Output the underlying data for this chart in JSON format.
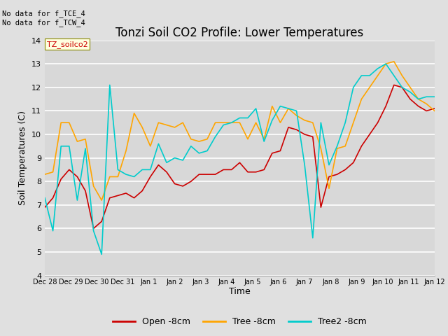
{
  "title": "Tonzi Soil CO2 Profile: Lower Temperatures",
  "xlabel": "Time",
  "ylabel": "Soil Temperatures (C)",
  "ylim": [
    4.0,
    14.0
  ],
  "yticks": [
    4.0,
    5.0,
    6.0,
    7.0,
    8.0,
    9.0,
    10.0,
    11.0,
    12.0,
    13.0,
    14.0
  ],
  "xtick_labels": [
    "Dec 28",
    "Dec 29",
    "Dec 30",
    "Dec 31",
    "Jan 1",
    "Jan 2",
    "Jan 3",
    "Jan 4",
    "Jan 5",
    "Jan 6",
    "Jan 7",
    "Jan 8",
    "Jan 9",
    "Jan 10",
    "Jan 11",
    "Jan 12"
  ],
  "annotation_text": "No data for f_TCE_4\nNo data for f_TCW_4",
  "legend_label_text": "TZ_soilco2",
  "legend_labels": [
    "Open -8cm",
    "Tree -8cm",
    "Tree2 -8cm"
  ],
  "line_colors": [
    "#cc0000",
    "#ffa500",
    "#00cccc"
  ],
  "background_color": "#e0e0e0",
  "plot_bg_color": "#d8d8d8",
  "grid_color": "#ffffff",
  "title_fontsize": 12,
  "open_8cm": [
    6.9,
    7.3,
    8.1,
    8.5,
    8.2,
    7.6,
    6.0,
    6.3,
    7.3,
    7.4,
    7.5,
    7.3,
    7.6,
    8.2,
    8.7,
    8.4,
    7.9,
    7.8,
    8.0,
    8.3,
    8.3,
    8.3,
    8.5,
    8.5,
    8.8,
    8.4,
    8.4,
    8.5,
    9.2,
    9.3,
    10.3,
    10.2,
    10.0,
    9.9,
    6.9,
    8.2,
    8.3,
    8.5,
    8.8,
    9.5,
    10.0,
    10.5,
    11.2,
    12.1,
    12.0,
    11.5,
    11.2,
    11.0,
    11.1
  ],
  "tree_8cm": [
    8.3,
    8.4,
    10.5,
    10.5,
    9.7,
    9.8,
    7.8,
    7.2,
    8.2,
    8.2,
    9.3,
    10.9,
    10.3,
    9.5,
    10.5,
    10.4,
    10.3,
    10.5,
    9.8,
    9.7,
    9.8,
    10.5,
    10.5,
    10.5,
    10.5,
    9.8,
    10.5,
    9.8,
    11.2,
    10.5,
    11.1,
    10.8,
    10.6,
    10.5,
    9.4,
    7.7,
    9.4,
    9.5,
    10.5,
    11.5,
    12.0,
    12.5,
    13.0,
    13.1,
    12.5,
    12.0,
    11.5,
    11.3,
    11.0
  ],
  "tree2_8cm": [
    7.3,
    5.9,
    9.5,
    9.5,
    7.2,
    9.4,
    5.9,
    4.9,
    12.1,
    8.5,
    8.3,
    8.2,
    8.5,
    8.5,
    9.6,
    8.8,
    9.0,
    8.9,
    9.5,
    9.2,
    9.3,
    9.9,
    10.4,
    10.5,
    10.7,
    10.7,
    11.1,
    9.7,
    10.6,
    11.2,
    11.1,
    11.0,
    8.7,
    5.6,
    10.5,
    8.7,
    9.5,
    10.5,
    12.0,
    12.5,
    12.5,
    12.8,
    13.0,
    12.5,
    12.0,
    11.8,
    11.5,
    11.6,
    11.6
  ]
}
